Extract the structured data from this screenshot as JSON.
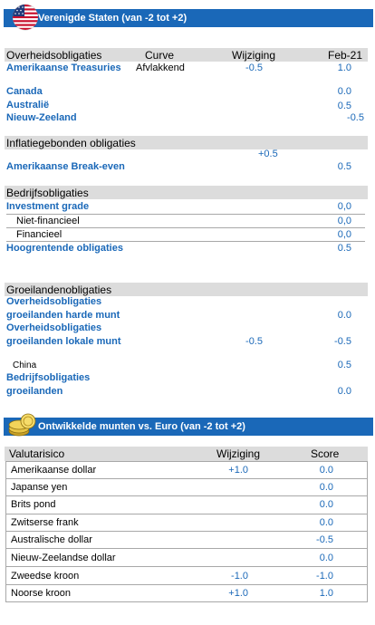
{
  "us": {
    "title": "Verenigde Staten (van -2 tot +2)",
    "flag_icon": "us-flag-icon",
    "headers": {
      "category": "Overheidsobligaties",
      "curve": "Curve",
      "change": "Wijziging",
      "date": "Feb-21"
    },
    "govt": [
      {
        "label": "Amerikaanse Treasuries",
        "curve": "Afvlakkend",
        "change": "-0.5",
        "score": "1.0"
      },
      {
        "label": "Canada",
        "score": "0.0"
      },
      {
        "label": "Australië",
        "score": "0.5"
      },
      {
        "label": "Nieuw-Zeeland",
        "score": "-0.5"
      }
    ],
    "inflation": {
      "header": "Inflatiegebonden obligaties",
      "change": "+0.5",
      "label": "Amerikaanse Break-even",
      "score": "0.5"
    },
    "corporate": {
      "header": "Bedrijfsobligaties",
      "investment_grade": {
        "label": "Investment grade",
        "score": "0,0"
      },
      "non_financial": {
        "label": "Niet-financieel",
        "score": "0,0"
      },
      "financial": {
        "label": "Financieel",
        "score": "0,0"
      },
      "high_yield": {
        "label": "Hoogrentende obligaties",
        "score": "0.5"
      }
    },
    "emerging": {
      "header": "Groeilandenobligaties",
      "hard_line1": "Overheidsobligaties",
      "hard_line2": "groeilanden harde munt",
      "hard_score": "0.0",
      "local_line1": "Overheidsobligaties",
      "local_line2": "groeilanden lokale munt",
      "local_change": "-0.5",
      "local_score": "-0.5",
      "china_label": "China",
      "china_score": "0.5",
      "corp_line1": "Bedrijfsobligaties",
      "corp_line2": "groeilanden",
      "corp_score": "0.0"
    }
  },
  "fx": {
    "title": "Ontwikkelde munten vs. Euro (van -2 tot +2)",
    "coins_icon": "coins-icon",
    "headers": {
      "risk": "Valutarisico",
      "change": "Wijziging",
      "score": "Score"
    },
    "rows": [
      {
        "label": "Amerikaanse dollar",
        "change": "+1.0",
        "score": "0.0"
      },
      {
        "label": "Japanse yen",
        "change": "",
        "score": "0.0"
      },
      {
        "label": "Brits pond",
        "change": "",
        "score": "0.0"
      },
      {
        "label": "Zwitserse frank",
        "change": "",
        "score": "0.0"
      },
      {
        "label": "Australische dollar",
        "change": "",
        "score": "-0.5"
      },
      {
        "label": "Nieuw-Zeelandse dollar",
        "change": "",
        "score": "0.0"
      },
      {
        "label": "Zweedse kroon",
        "change": "-1.0",
        "score": "-1.0"
      },
      {
        "label": "Noorse kroon",
        "change": "+1.0",
        "score": "1.0"
      }
    ]
  }
}
